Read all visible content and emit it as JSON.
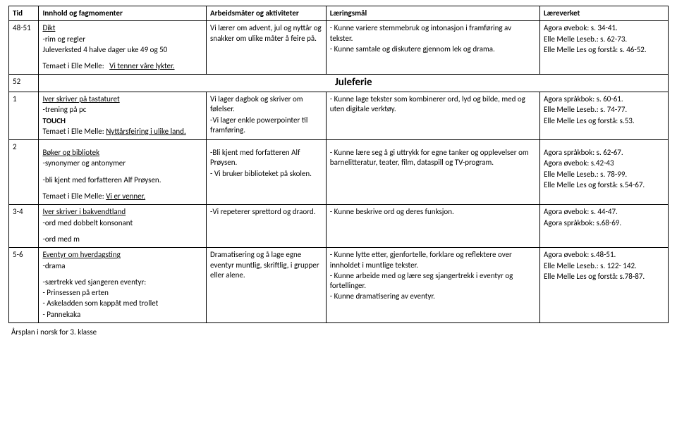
{
  "headers": {
    "tid": "Tid",
    "innhold": "Innhold og fagmomenter",
    "arbeid": "Arbeidsmåter og aktiviteter",
    "laering": "Læringsmål",
    "laere": "Læreverket"
  },
  "row1": {
    "tid": "48-51",
    "innhold_l1": "Dikt",
    "innhold_l2": "-rim og regler",
    "innhold_l3": "Juleverksted 4 halve dager uke 49 og 50",
    "innhold_l4a": "Temaet i Elle Melle:",
    "innhold_l4b": "Vi tenner våre lykter.",
    "arbeid": "Vi lærer om advent, jul og nyttår og snakker om ulike måter å feire på.",
    "laering_l1": "- Kunne variere stemmebruk og intonasjon i framføring av tekster.",
    "laering_l2": "- Kunne samtale og diskutere gjennom lek og drama.",
    "laere_l1": "Agora øvebok: s. 34-41.",
    "laere_l2": "Elle Melle Leseb.: s. 62-73.",
    "laere_l3": "Elle Melle Les og forstå: s. 46-52."
  },
  "row2": {
    "tid": "52",
    "label": "Juleferie"
  },
  "row3": {
    "tid": "1",
    "innhold_l1": "Iver skriver på tastaturet",
    "innhold_l2": "-trening på pc",
    "innhold_l3": "TOUCH",
    "innhold_l4a": "Temaet i Elle Melle:",
    "innhold_l4b": "Nyttårsfeiring i ulike land.",
    "arbeid_l1": "Vi lager dagbok og skriver om følelser.",
    "arbeid_l2": "-Vi lager enkle powerpointer til framføring.",
    "laering": "- Kunne lage tekster som kombinerer ord, lyd og bilde, med og uten digitale verktøy.",
    "laere_l1": "Agora språkbok: s. 60-61.",
    "laere_l2": "Elle Melle Leseb.: s. 74-77.",
    "laere_l3": "Elle Melle Les og forstå: s.53."
  },
  "row4": {
    "tid": "2",
    "innhold_l1": "Bøker og bibliotek",
    "innhold_l2": "-synonymer og antonymer",
    "innhold_l3": "-bli kjent med forfatteren Alf Prøysen.",
    "innhold_l4a": "Temaet i Elle Melle:",
    "innhold_l4b": "Vi er venner.",
    "arbeid_l1": "-Bli kjent med forfatteren Alf Prøysen.",
    "arbeid_l2": "- Vi bruker biblioteket på skolen.",
    "laering": "- Kunne lære seg å gi uttrykk for egne tanker og opplevelser om barnelitteratur, teater, film, dataspill og TV-program.",
    "laere_l1": "Agora språkbok: s. 62-67.",
    "laere_l2": "Agora øvebok: s.42-43",
    "laere_l3": "Elle Melle Leseb.: s. 78-99.",
    "laere_l4": "Elle Melle Les og forstå: s.54-67."
  },
  "row5": {
    "tid": "3-4",
    "innhold_l1": "Iver skriver i bakvendtland",
    "innhold_l2": "-ord med dobbelt konsonant",
    "innhold_l3": "-ord med m",
    "arbeid": "-Vi repeterer sprettord og draord.",
    "laering": "- Kunne beskrive ord og deres funksjon.",
    "laere_l1": "Agora øvebok: s. 44-47.",
    "laere_l2": "Agora språkbok: s.68-69."
  },
  "row6": {
    "tid": "5-6",
    "innhold_l1": "Eventyr om hverdagsting",
    "innhold_l2": "-drama",
    "innhold_l3": "-særtrekk ved sjangeren eventyr:",
    "innhold_l4": "- Prinsessen på erten",
    "innhold_l5": "- Askeladden som kappåt med trollet",
    "innhold_l6": "- Pannekaka",
    "arbeid": "Dramatisering og å lage egne eventyr muntlig, skriftlig, i grupper eller alene.",
    "laering_l1": "- Kunne lytte etter, gjenfortelle, forklare og reflektere over innholdet i muntlige tekster.",
    "laering_l2": "- Kunne arbeide med og lære seg sjangertrekk i eventyr og fortellinger.",
    "laering_l3": "- Kunne dramatisering av eventyr.",
    "laere_l1": "Agora øvebok: s.48-51.",
    "laere_l2": "Elle Melle Leseb.: s. 122- 142.",
    "laere_l3": "Elle Melle Les og forstå: s.78-87."
  },
  "footer": "Årsplan i norsk for 3. klasse"
}
